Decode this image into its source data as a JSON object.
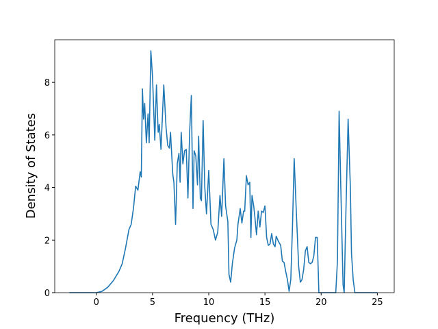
{
  "chart_data": {
    "type": "line",
    "xlabel": "Frequency (THz)",
    "ylabel": "Density of States",
    "color": "#1f77b4",
    "xlim": [
      -3.7,
      26.5
    ],
    "ylim": [
      0,
      9.62
    ],
    "xticks": [
      0,
      5,
      10,
      15,
      20,
      25
    ],
    "yticks": [
      0,
      2,
      4,
      6,
      8
    ],
    "x": [
      -2.4,
      0,
      0.5,
      1,
      1.5,
      2,
      2.3,
      2.6,
      2.9,
      3.1,
      3.3,
      3.5,
      3.7,
      3.9,
      4.0,
      4.1,
      4.2,
      4.3,
      4.45,
      4.6,
      4.7,
      4.85,
      5.0,
      5.2,
      5.35,
      5.5,
      5.6,
      5.75,
      6.0,
      6.2,
      6.35,
      6.5,
      6.6,
      6.8,
      6.9,
      7.05,
      7.2,
      7.35,
      7.45,
      7.55,
      7.7,
      7.85,
      8.0,
      8.15,
      8.3,
      8.45,
      8.6,
      8.7,
      8.85,
      9.0,
      9.1,
      9.25,
      9.35,
      9.5,
      9.65,
      9.8,
      10.0,
      10.2,
      10.4,
      10.6,
      10.8,
      11.0,
      11.15,
      11.35,
      11.5,
      11.7,
      11.8,
      11.95,
      12.1,
      12.3,
      12.5,
      12.6,
      12.8,
      12.95,
      13.1,
      13.2,
      13.35,
      13.5,
      13.65,
      13.75,
      13.85,
      14.0,
      14.1,
      14.25,
      14.4,
      14.55,
      14.7,
      14.85,
      15.0,
      15.15,
      15.3,
      15.45,
      15.6,
      15.75,
      15.9,
      16.0,
      16.2,
      16.4,
      16.55,
      16.7,
      16.85,
      17.0,
      17.15,
      17.3,
      17.45,
      17.6,
      17.8,
      18.0,
      18.15,
      18.3,
      18.45,
      18.6,
      18.75,
      18.9,
      19.05,
      19.2,
      19.35,
      19.5,
      19.65,
      19.8,
      21.3,
      21.45,
      21.6,
      21.75,
      21.95,
      22.05,
      22.2,
      22.4,
      22.6,
      22.7,
      22.85,
      23.0,
      25
    ],
    "values": [
      0,
      0,
      0.05,
      0.2,
      0.45,
      0.8,
      1.1,
      1.7,
      2.4,
      2.6,
      3.2,
      4.05,
      3.9,
      4.6,
      4.4,
      7.75,
      6.6,
      7.2,
      5.7,
      6.8,
      5.7,
      9.2,
      8.2,
      5.8,
      7.9,
      6.1,
      6.4,
      5.45,
      7.9,
      6.3,
      5.6,
      5.5,
      6.1,
      4.5,
      4.2,
      2.6,
      4.9,
      5.3,
      4.2,
      6.1,
      4.9,
      5.4,
      5.45,
      3.6,
      6.1,
      7.5,
      3.2,
      5.4,
      5.2,
      4.1,
      5.95,
      3.6,
      3.5,
      6.55,
      4.0,
      3.0,
      4.65,
      2.6,
      2.4,
      2.0,
      2.3,
      3.7,
      2.9,
      5.1,
      3.3,
      2.7,
      0.7,
      0.4,
      1.1,
      1.7,
      2.0,
      2.6,
      3.2,
      2.65,
      3.1,
      3.1,
      4.45,
      4.1,
      4.2,
      2.1,
      3.7,
      3.3,
      2.9,
      2.2,
      3.1,
      2.5,
      3.1,
      3.05,
      3.3,
      2.1,
      1.8,
      1.85,
      2.25,
      1.85,
      1.75,
      2.15,
      1.95,
      1.8,
      1.2,
      1.15,
      0.8,
      0.5,
      0.05,
      0.5,
      2.5,
      5.1,
      3.0,
      1.0,
      0.4,
      0.5,
      0.9,
      1.6,
      1.75,
      1.15,
      1.1,
      1.15,
      1.4,
      2.1,
      2.1,
      0,
      0,
      1.2,
      6.9,
      4.0,
      0.3,
      0,
      3.0,
      6.6,
      4.0,
      1.5,
      0.5,
      0,
      0
    ]
  }
}
